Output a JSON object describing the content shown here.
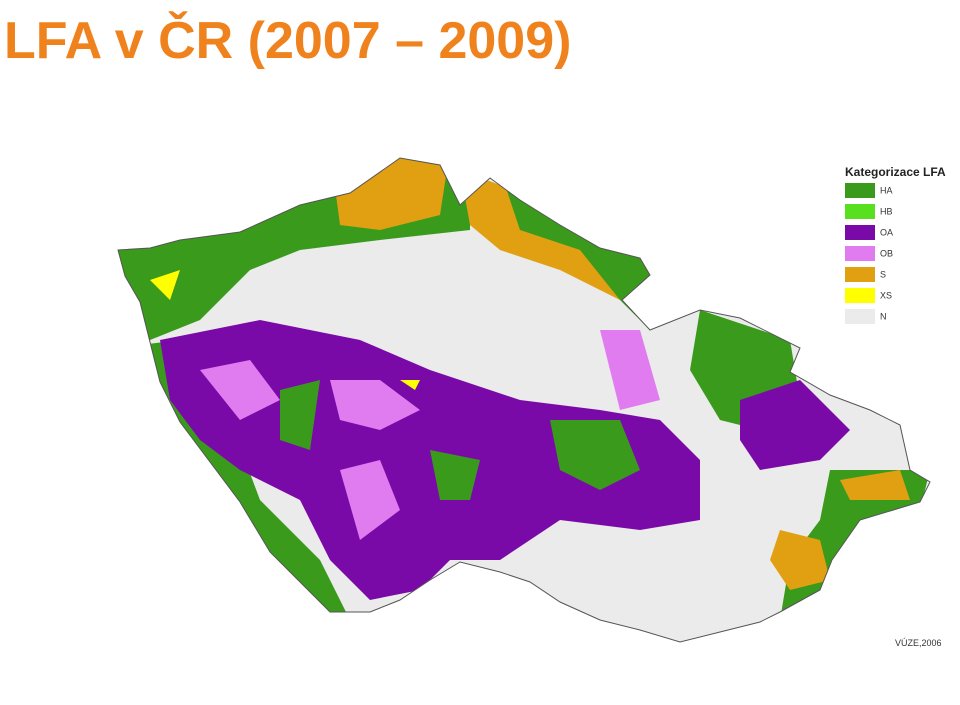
{
  "title": "LFA v ČR (2007 – 2009)",
  "legend": {
    "title": "Kategorizace LFA",
    "items": [
      {
        "label": "HA",
        "color": "#3a9a1c"
      },
      {
        "label": "HB",
        "color": "#58e01e"
      },
      {
        "label": "OA",
        "color": "#7a0aa8"
      },
      {
        "label": "OB",
        "color": "#e07cf0"
      },
      {
        "label": "S",
        "color": "#e0a012"
      },
      {
        "label": "XS",
        "color": "#ffff00"
      },
      {
        "label": "N",
        "color": "#ebebeb"
      }
    ]
  },
  "source": "VÚZE,2006"
}
